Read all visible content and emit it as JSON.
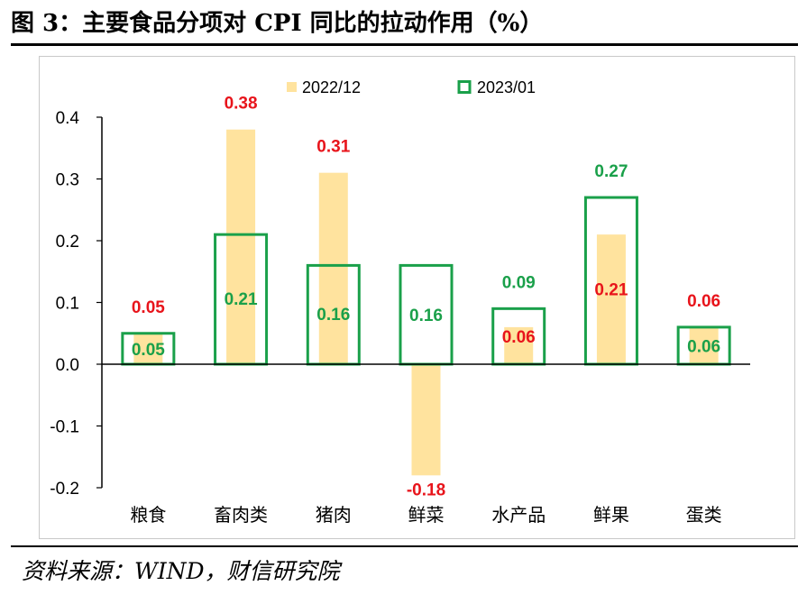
{
  "header": {
    "title": "图 3：主要食品分项对 CPI 同比的拉动作用（%）"
  },
  "footer": {
    "source": "资料来源：WIND，财信研究院"
  },
  "colors": {
    "bar_2022_12": "#FFE39E",
    "box_2023_01": "#1AA04A",
    "label_red": "#E8141B",
    "label_green": "#1AA04A",
    "axis": "#000000"
  },
  "chart_data": {
    "type": "bar",
    "title": "",
    "xlabel": "",
    "ylabel": "",
    "ylim": [
      -0.2,
      0.4
    ],
    "yticks": [
      "0.4",
      "0.3",
      "0.2",
      "0.1",
      "0.0",
      "-0.1",
      "-0.2"
    ],
    "legend_position": "top",
    "categories": [
      "粮食",
      "畜肉类",
      "猪肉",
      "鲜菜",
      "水产品",
      "鲜果",
      "蛋类"
    ],
    "series": [
      {
        "name": "2022/12",
        "style": "filled-bar",
        "values": [
          0.05,
          0.38,
          0.31,
          -0.18,
          0.06,
          0.21,
          0.06
        ],
        "labels": [
          "0.05",
          "0.38",
          "0.31",
          "-0.18",
          "0.06",
          "0.21",
          "0.06"
        ]
      },
      {
        "name": "2023/01",
        "style": "outline-bar",
        "values": [
          0.05,
          0.21,
          0.16,
          0.16,
          0.09,
          0.27,
          0.06
        ],
        "labels": [
          "0.05",
          "0.21",
          "0.16",
          "0.16",
          "0.09",
          "0.27",
          "0.06"
        ]
      }
    ]
  }
}
